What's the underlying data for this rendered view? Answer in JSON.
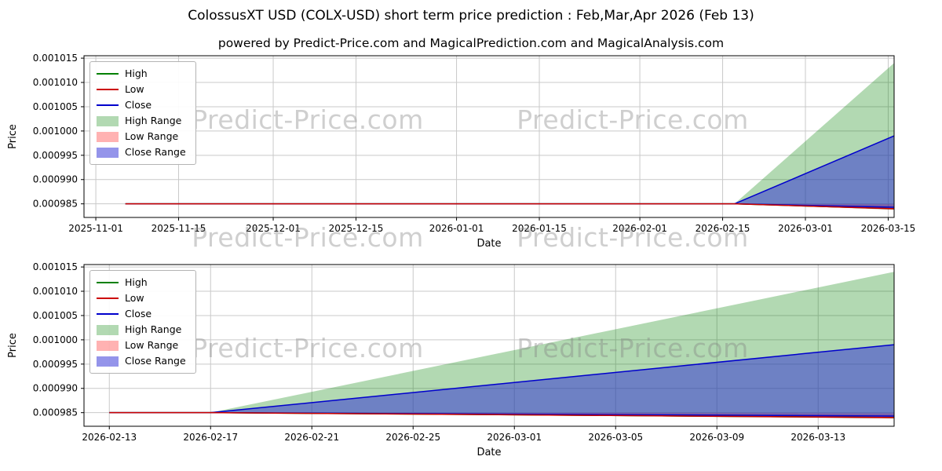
{
  "figure": {
    "title": "ColossusXT USD (COLX-USD) short term price prediction : Feb,Mar,Apr 2026 (Feb 13)",
    "subtitle": "powered by Predict-Price.com and MagicalPrediction.com and MagicalAnalysis.com"
  },
  "watermark": {
    "text": "Predict-Price.com"
  },
  "legend": [
    {
      "label": "High",
      "type": "line",
      "color": "#008000"
    },
    {
      "label": "Low",
      "type": "line",
      "color": "#cc0000"
    },
    {
      "label": "Close",
      "type": "line",
      "color": "#0000cc"
    },
    {
      "label": "High Range",
      "type": "patch",
      "color": "#008000",
      "opacity": 0.3
    },
    {
      "label": "Low Range",
      "type": "patch",
      "color": "#ff0000",
      "opacity": 0.3
    },
    {
      "label": "Close Range",
      "type": "patch",
      "color": "#2929d6",
      "opacity": 0.5
    }
  ],
  "chart_data": [
    {
      "type": "area",
      "title": "",
      "xlabel": "Date",
      "ylabel": "Price",
      "grid": true,
      "legend_position": "upper left",
      "xlim": [
        "2025-10-30",
        "2026-03-16"
      ],
      "ylim": [
        0.0009822,
        0.0010155
      ],
      "x_ticks": [
        {
          "date": "2025-11-01",
          "label": "2025-11-01"
        },
        {
          "date": "2025-11-15",
          "label": "2025-11-15"
        },
        {
          "date": "2025-12-01",
          "label": "2025-12-01"
        },
        {
          "date": "2025-12-15",
          "label": "2025-12-15"
        },
        {
          "date": "2026-01-01",
          "label": "2026-01-01"
        },
        {
          "date": "2026-01-15",
          "label": "2026-01-15"
        },
        {
          "date": "2026-02-01",
          "label": "2026-02-01"
        },
        {
          "date": "2026-02-15",
          "label": "2026-02-15"
        },
        {
          "date": "2026-03-01",
          "label": "2026-03-01"
        },
        {
          "date": "2026-03-15",
          "label": "2026-03-15"
        }
      ],
      "y_ticks": [
        {
          "value": 0.000985,
          "label": "0.000985"
        },
        {
          "value": 0.00099,
          "label": "0.000990"
        },
        {
          "value": 0.000995,
          "label": "0.000995"
        },
        {
          "value": 0.001,
          "label": "0.001000"
        },
        {
          "value": 0.001005,
          "label": "0.001005"
        },
        {
          "value": 0.00101,
          "label": "0.001010"
        },
        {
          "value": 0.001015,
          "label": "0.001015"
        }
      ],
      "bands": [
        {
          "name": "High Range",
          "color": "#008000",
          "opacity": 0.3,
          "upper": [
            [
              "2026-02-17",
              0.000985
            ],
            [
              "2026-03-16",
              0.001014
            ]
          ],
          "lower": [
            [
              "2026-02-17",
              0.000985
            ],
            [
              "2026-03-16",
              0.0009838
            ]
          ]
        },
        {
          "name": "Low Range",
          "color": "#ff0000",
          "opacity": 0.3,
          "upper": [
            [
              "2026-02-17",
              0.000985
            ],
            [
              "2026-03-16",
              0.0009849
            ]
          ],
          "lower": [
            [
              "2026-02-17",
              0.000985
            ],
            [
              "2026-03-16",
              0.0009838
            ]
          ]
        },
        {
          "name": "Close Range",
          "color": "#2929d6",
          "opacity": 0.5,
          "edge": "#0000cc",
          "upper": [
            [
              "2026-02-17",
              0.000985
            ],
            [
              "2026-03-16",
              0.000999
            ]
          ],
          "lower": [
            [
              "2026-02-17",
              0.000985
            ],
            [
              "2026-03-16",
              0.0009841
            ]
          ]
        }
      ],
      "lines": [
        {
          "name": "High",
          "color": "#008000",
          "points": [
            [
              "2025-11-06",
              0.000985
            ],
            [
              "2026-02-17",
              0.000985
            ],
            [
              "2026-03-16",
              0.000984
            ]
          ]
        },
        {
          "name": "Close",
          "color": "#0000cc",
          "points": [
            [
              "2025-11-06",
              0.000985
            ],
            [
              "2026-02-17",
              0.000985
            ],
            [
              "2026-03-16",
              0.0009843
            ]
          ]
        },
        {
          "name": "Low",
          "color": "#cc0000",
          "points": [
            [
              "2025-11-06",
              0.000985
            ],
            [
              "2026-02-17",
              0.000985
            ],
            [
              "2026-03-16",
              0.000984
            ]
          ]
        }
      ]
    },
    {
      "type": "area",
      "title": "",
      "xlabel": "Date",
      "ylabel": "Price",
      "grid": true,
      "legend_position": "upper left",
      "xlim": [
        "2026-02-12",
        "2026-03-16"
      ],
      "ylim": [
        0.0009822,
        0.0010155
      ],
      "x_ticks": [
        {
          "date": "2026-02-13",
          "label": "2026-02-13"
        },
        {
          "date": "2026-02-17",
          "label": "2026-02-17"
        },
        {
          "date": "2026-02-21",
          "label": "2026-02-21"
        },
        {
          "date": "2026-02-25",
          "label": "2026-02-25"
        },
        {
          "date": "2026-03-01",
          "label": "2026-03-01"
        },
        {
          "date": "2026-03-05",
          "label": "2026-03-05"
        },
        {
          "date": "2026-03-09",
          "label": "2026-03-09"
        },
        {
          "date": "2026-03-13",
          "label": "2026-03-13"
        }
      ],
      "y_ticks": [
        {
          "value": 0.000985,
          "label": "0.000985"
        },
        {
          "value": 0.00099,
          "label": "0.000990"
        },
        {
          "value": 0.000995,
          "label": "0.000995"
        },
        {
          "value": 0.001,
          "label": "0.001000"
        },
        {
          "value": 0.001005,
          "label": "0.001005"
        },
        {
          "value": 0.00101,
          "label": "0.001010"
        },
        {
          "value": 0.001015,
          "label": "0.001015"
        }
      ],
      "bands": [
        {
          "name": "High Range",
          "color": "#008000",
          "opacity": 0.3,
          "upper": [
            [
              "2026-02-17",
              0.000985
            ],
            [
              "2026-03-16",
              0.001014
            ]
          ],
          "lower": [
            [
              "2026-02-17",
              0.000985
            ],
            [
              "2026-03-16",
              0.0009838
            ]
          ]
        },
        {
          "name": "Low Range",
          "color": "#ff0000",
          "opacity": 0.3,
          "upper": [
            [
              "2026-02-17",
              0.000985
            ],
            [
              "2026-03-16",
              0.0009849
            ]
          ],
          "lower": [
            [
              "2026-02-17",
              0.000985
            ],
            [
              "2026-03-16",
              0.0009838
            ]
          ]
        },
        {
          "name": "Close Range",
          "color": "#2929d6",
          "opacity": 0.5,
          "edge": "#0000cc",
          "upper": [
            [
              "2026-02-17",
              0.000985
            ],
            [
              "2026-03-16",
              0.000999
            ]
          ],
          "lower": [
            [
              "2026-02-17",
              0.000985
            ],
            [
              "2026-03-16",
              0.0009841
            ]
          ]
        }
      ],
      "lines": [
        {
          "name": "High",
          "color": "#008000",
          "points": [
            [
              "2026-02-13",
              0.000985
            ],
            [
              "2026-02-17",
              0.000985
            ],
            [
              "2026-03-16",
              0.000984
            ]
          ]
        },
        {
          "name": "Close",
          "color": "#0000cc",
          "points": [
            [
              "2026-02-13",
              0.000985
            ],
            [
              "2026-02-17",
              0.000985
            ],
            [
              "2026-03-16",
              0.0009843
            ]
          ]
        },
        {
          "name": "Low",
          "color": "#cc0000",
          "points": [
            [
              "2026-02-13",
              0.000985
            ],
            [
              "2026-02-17",
              0.000985
            ],
            [
              "2026-03-16",
              0.000984
            ]
          ]
        }
      ]
    }
  ]
}
